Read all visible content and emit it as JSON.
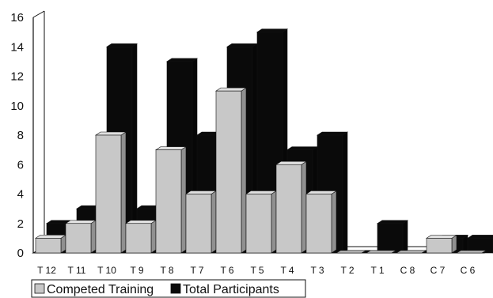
{
  "chart_data": {
    "type": "bar",
    "style": "3d-clustered",
    "categories": [
      "T 12",
      "T 11",
      "T 10",
      "T 9",
      "T 8",
      "T 7",
      "T 6",
      "T 5",
      "T 4",
      "T 3",
      "T 2",
      "T 1",
      "C 8",
      "C 7",
      "C 6"
    ],
    "series": [
      {
        "name": "Competed Training",
        "color": "#c8c8c8",
        "values": [
          1,
          2,
          8,
          2,
          7,
          4,
          11,
          4,
          6,
          4,
          0,
          0,
          0,
          1,
          0
        ]
      },
      {
        "name": "Total Participants",
        "color": "#0a0a0a",
        "values": [
          2,
          3,
          14,
          3,
          13,
          8,
          14,
          15,
          7,
          8,
          0,
          2,
          0,
          1,
          1
        ]
      }
    ],
    "ylim": [
      0,
      16
    ],
    "yticks": [
      0,
      2,
      4,
      6,
      8,
      10,
      12,
      14,
      16
    ],
    "legend_position": "bottom-left",
    "grid": false
  }
}
